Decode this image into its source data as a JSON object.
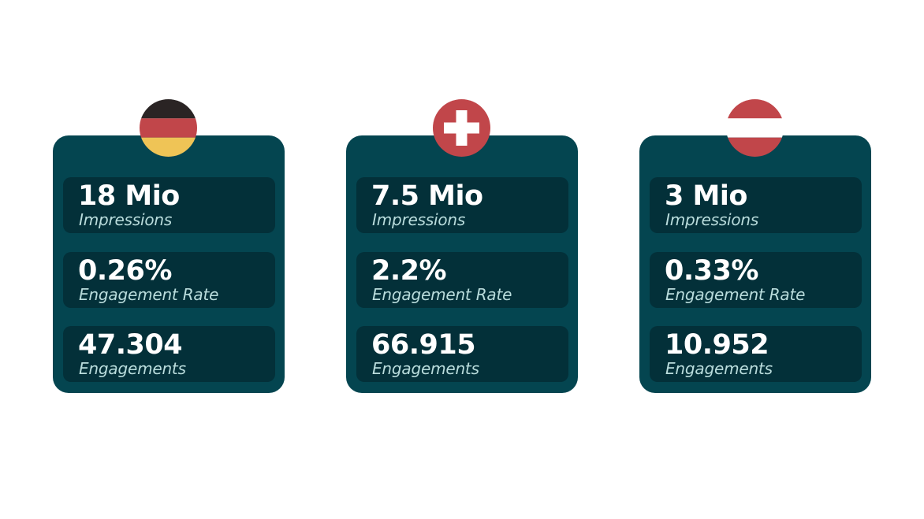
{
  "colors": {
    "card_background": "#044550",
    "metric_background": "#033039",
    "value_text": "#ffffff",
    "label_text": "#b9dcdc",
    "germany_black": "#2a2424",
    "germany_red": "#c1464a",
    "germany_gold": "#efc456",
    "swiss_red": "#c1464a",
    "austria_red": "#c1464a",
    "white": "#ffffff"
  },
  "cards": [
    {
      "flag_icon": "germany-flag-icon",
      "metrics": [
        {
          "value": "18 Mio",
          "label": "Impressions"
        },
        {
          "value": "0.26%",
          "label": "Engagement Rate"
        },
        {
          "value": "47.304",
          "label": "Engagements"
        }
      ]
    },
    {
      "flag_icon": "switzerland-flag-icon",
      "metrics": [
        {
          "value": "7.5 Mio",
          "label": "Impressions"
        },
        {
          "value": "2.2%",
          "label": "Engagement Rate"
        },
        {
          "value": "66.915",
          "label": "Engagements"
        }
      ]
    },
    {
      "flag_icon": "austria-flag-icon",
      "metrics": [
        {
          "value": "3 Mio",
          "label": "Impressions"
        },
        {
          "value": "0.33%",
          "label": "Engagement Rate"
        },
        {
          "value": "10.952",
          "label": "Engagements"
        }
      ]
    }
  ]
}
